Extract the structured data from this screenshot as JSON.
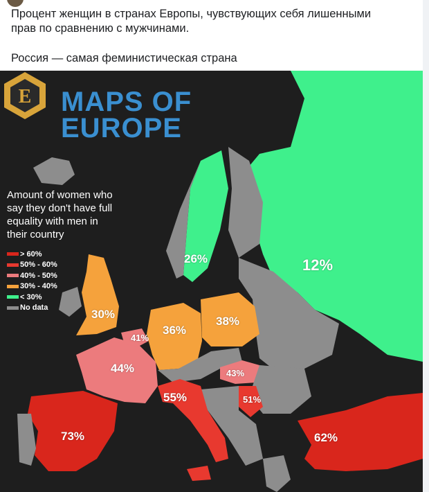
{
  "post": {
    "line1": "Процент женщин в странах Европы, чувствующих себя лишенными",
    "line2": "прав по сравнению с мужчинами.",
    "line3": "Россия — самая феминистическая страна"
  },
  "map": {
    "logo_letter": "E",
    "logo_line1": "MAPS OF",
    "logo_line2": "EUROPE",
    "legend_title_lines": [
      "Amount of women who",
      "say they don't have full",
      "equality with men in",
      "their country"
    ],
    "legend": [
      {
        "label": "> 60%",
        "color": "#d9261c"
      },
      {
        "label": "50% - 60%",
        "color": "#e8392f"
      },
      {
        "label": "40% - 50%",
        "color": "#ec7b7d"
      },
      {
        "label": "30% - 40%",
        "color": "#f5a23c"
      },
      {
        "label": "< 30%",
        "color": "#3ff08c"
      },
      {
        "label": "No data",
        "color": "#8d8d8d"
      }
    ],
    "countries": {
      "sweden": "26%",
      "russia": "12%",
      "uk": "30%",
      "germany": "36%",
      "poland": "38%",
      "belgium": "41%",
      "france": "44%",
      "hungary": "43%",
      "italy": "55%",
      "serbia": "51%",
      "spain": "73%",
      "turkey": "62%"
    }
  }
}
